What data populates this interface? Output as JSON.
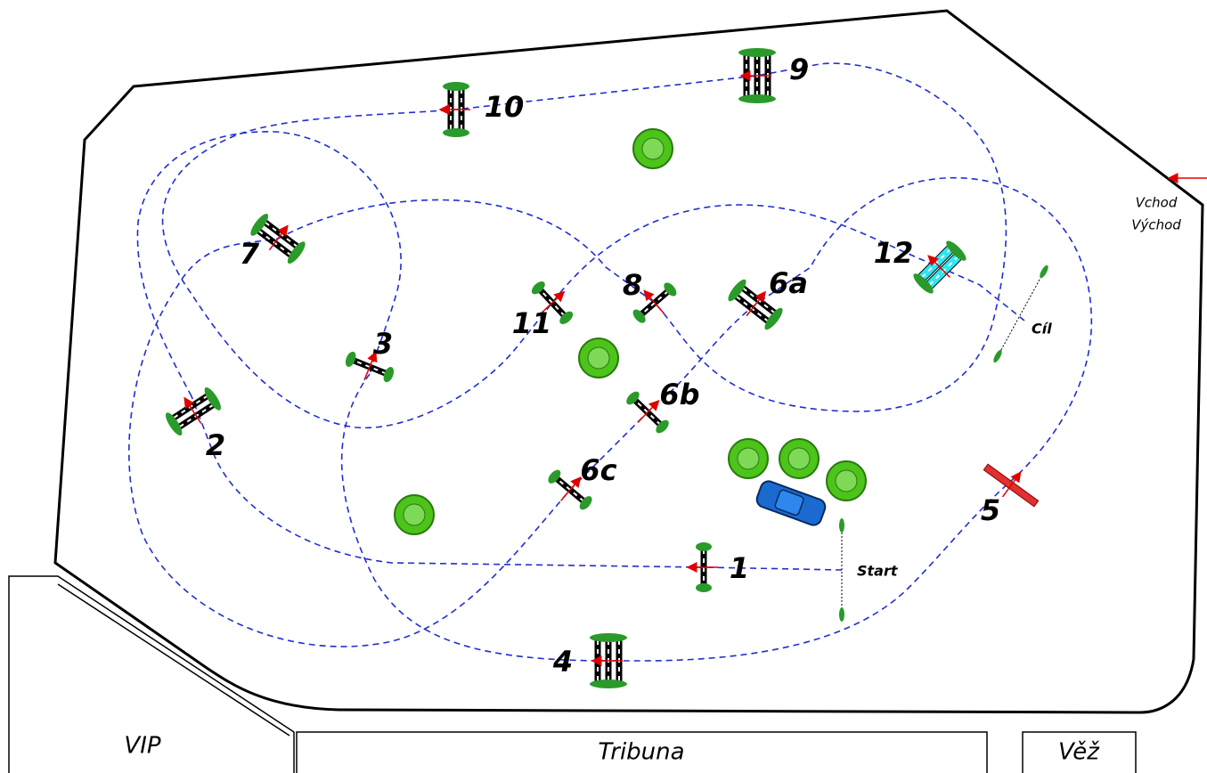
{
  "labels": {
    "vip": "VIP",
    "tribuna": "Tribuna",
    "vez": "Věž",
    "vchod": "Vchod",
    "vychod": "Východ",
    "start": "Start",
    "cil": "Cíl"
  },
  "jumps": [
    {
      "label": "1"
    },
    {
      "label": "2"
    },
    {
      "label": "3"
    },
    {
      "label": "4"
    },
    {
      "label": "5"
    },
    {
      "label": "6a"
    },
    {
      "label": "6b"
    },
    {
      "label": "6c"
    },
    {
      "label": "7"
    },
    {
      "label": "8"
    },
    {
      "label": "9"
    },
    {
      "label": "10"
    },
    {
      "label": "11"
    },
    {
      "label": "12"
    }
  ]
}
